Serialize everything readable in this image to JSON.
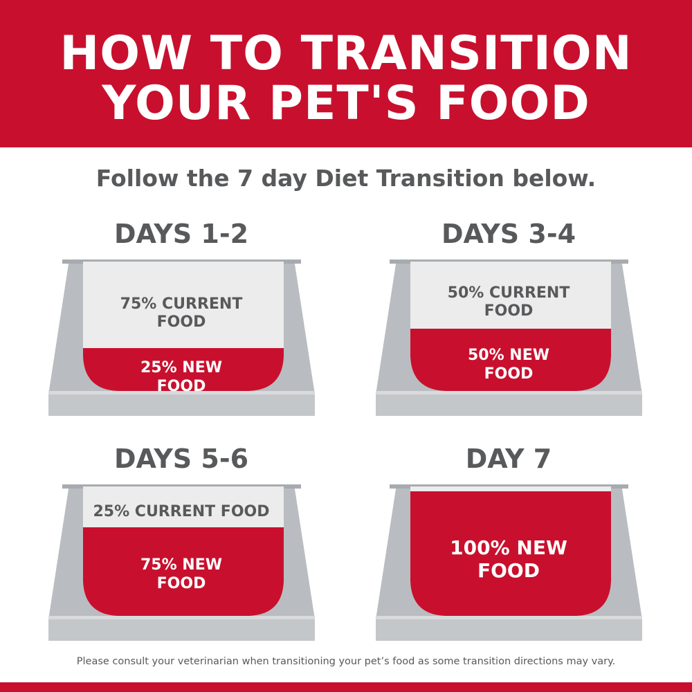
{
  "header": {
    "title_lines": [
      "HOW TO TRANSITION",
      "YOUR PET'S FOOD"
    ]
  },
  "subtitle": "Follow the 7 day Diet Transition below.",
  "panels": [
    {
      "heading": "DAYS 1-2",
      "current": "75% CURRENT FOOD",
      "new": "25% NEW FOOD"
    },
    {
      "heading": "DAYS 3-4",
      "current": "50% CURRENT FOOD",
      "new": "50% NEW FOOD"
    },
    {
      "heading": "DAYS 5-6",
      "current": "25% CURRENT FOOD",
      "new": "75% NEW FOOD"
    },
    {
      "heading": "DAY 7",
      "new": "100% NEW FOOD"
    }
  ],
  "footer": "Please consult your veterinarian when transitioning your pet’s food as some transition directions may vary."
}
